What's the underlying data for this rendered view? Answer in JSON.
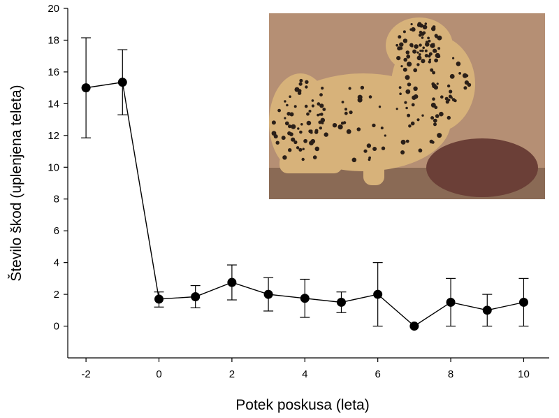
{
  "chart_data": {
    "type": "line",
    "title": "",
    "xlabel": "Potek poskusa (leta)",
    "ylabel": "Število škod (uplenjena teleta)",
    "xlim": [
      -2.5,
      10.7
    ],
    "ylim": [
      -2,
      20
    ],
    "xticks": [
      -2,
      0,
      2,
      4,
      6,
      8,
      10
    ],
    "yticks": [
      0,
      2,
      4,
      6,
      8,
      10,
      12,
      14,
      16,
      18,
      20
    ],
    "xtick_labels": [
      "-2",
      "0",
      "2",
      "4",
      "6",
      "8",
      "10"
    ],
    "ytick_labels": [
      "0",
      "2",
      "4",
      "6",
      "8",
      "10",
      "12",
      "14",
      "16",
      "18",
      "20"
    ],
    "grid": false,
    "points": [
      {
        "x": -2,
        "y": 15.0,
        "err_low": 11.85,
        "err_high": 18.15
      },
      {
        "x": -1,
        "y": 15.35,
        "err_low": 13.3,
        "err_high": 17.4
      },
      {
        "x": 0,
        "y": 1.7,
        "err_low": 1.2,
        "err_high": 2.15
      },
      {
        "x": 1,
        "y": 1.85,
        "err_low": 1.15,
        "err_high": 2.55
      },
      {
        "x": 2,
        "y": 2.75,
        "err_low": 1.65,
        "err_high": 3.85
      },
      {
        "x": 3,
        "y": 2.0,
        "err_low": 0.95,
        "err_high": 3.05
      },
      {
        "x": 4,
        "y": 1.75,
        "err_low": 0.55,
        "err_high": 2.95
      },
      {
        "x": 5,
        "y": 1.5,
        "err_low": 0.85,
        "err_high": 2.15
      },
      {
        "x": 6,
        "y": 2.0,
        "err_low": 0.0,
        "err_high": 4.0
      },
      {
        "x": 7,
        "y": 0.0,
        "err_low": 0.0,
        "err_high": 0.0
      },
      {
        "x": 8,
        "y": 1.5,
        "err_low": 0.0,
        "err_high": 3.0
      },
      {
        "x": 9,
        "y": 1.0,
        "err_low": 0.0,
        "err_high": 2.0
      },
      {
        "x": 10,
        "y": 1.5,
        "err_low": 0.0,
        "err_high": 3.0
      }
    ],
    "colors": {
      "line": "#000000",
      "marker": "#000000",
      "axis": "#000000"
    },
    "inset_image": {
      "subject": "cheetah with prey",
      "colors": {
        "background": "#b58f74",
        "ground": "#8a6a55",
        "fur": "#d7b27a",
        "spots": "#2a1f18",
        "prey": "#6b3f37"
      }
    }
  }
}
